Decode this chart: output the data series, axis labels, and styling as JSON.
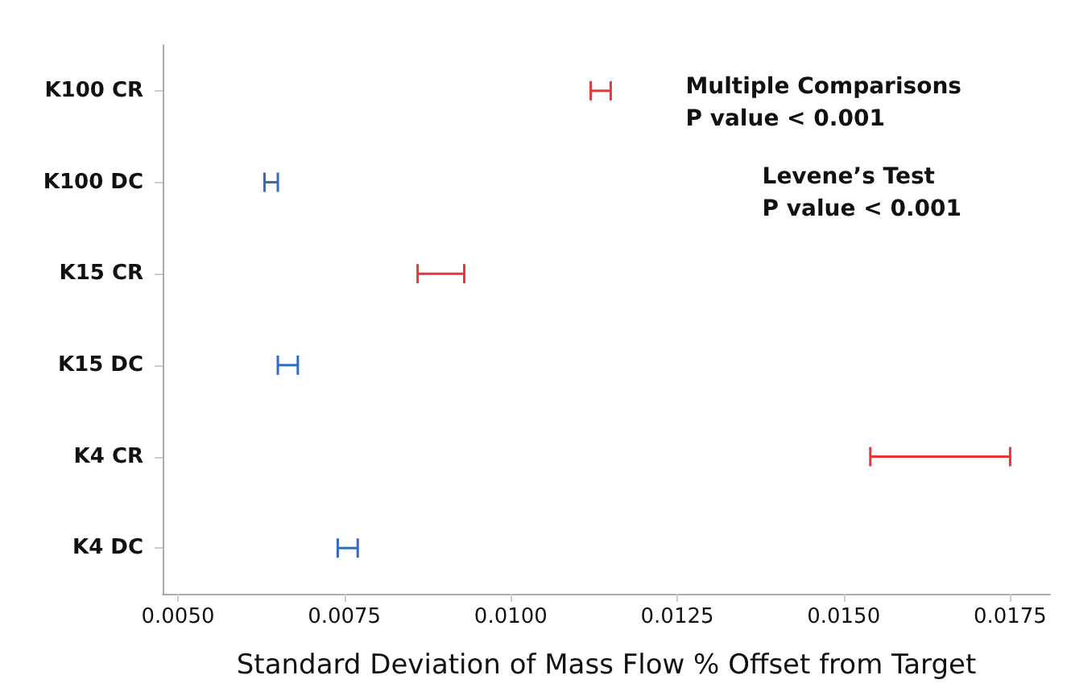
{
  "chart_data": {
    "type": "bar",
    "orientation": "horizontal",
    "xlabel": "Standard Deviation of Mass Flow % Offset from Target",
    "categories": [
      "K100 CR",
      "K100 DC",
      "K15 CR",
      "K15 DC",
      "K4 CR",
      "K4 DC"
    ],
    "base": [
      0.0112,
      0.0063,
      0.0086,
      0.0065,
      0.0154,
      0.0074
    ],
    "values": [
      0.0003,
      0.0002,
      0.0007,
      0.0003,
      0.0021,
      0.0003
    ],
    "colors": [
      "#e3373c",
      "#2f6ebf",
      "#e3373c",
      "#2f6ebf",
      "#e3373c",
      "#2f6ebf"
    ],
    "xlim": [
      0.00477,
      0.0181
    ],
    "xticks": [
      {
        "value": 0.005,
        "label": "0.0050"
      },
      {
        "value": 0.0075,
        "label": "0.0075"
      },
      {
        "value": 0.01,
        "label": "0.0100"
      },
      {
        "value": 0.0125,
        "label": "0.0125"
      },
      {
        "value": 0.015,
        "label": "0.0150"
      },
      {
        "value": 0.0175,
        "label": "0.0175"
      }
    ],
    "grid": false,
    "annotations": [
      "Multiple Comparisons\nP value < 0.001",
      "Levene’s Test\nP value < 0.001"
    ]
  }
}
